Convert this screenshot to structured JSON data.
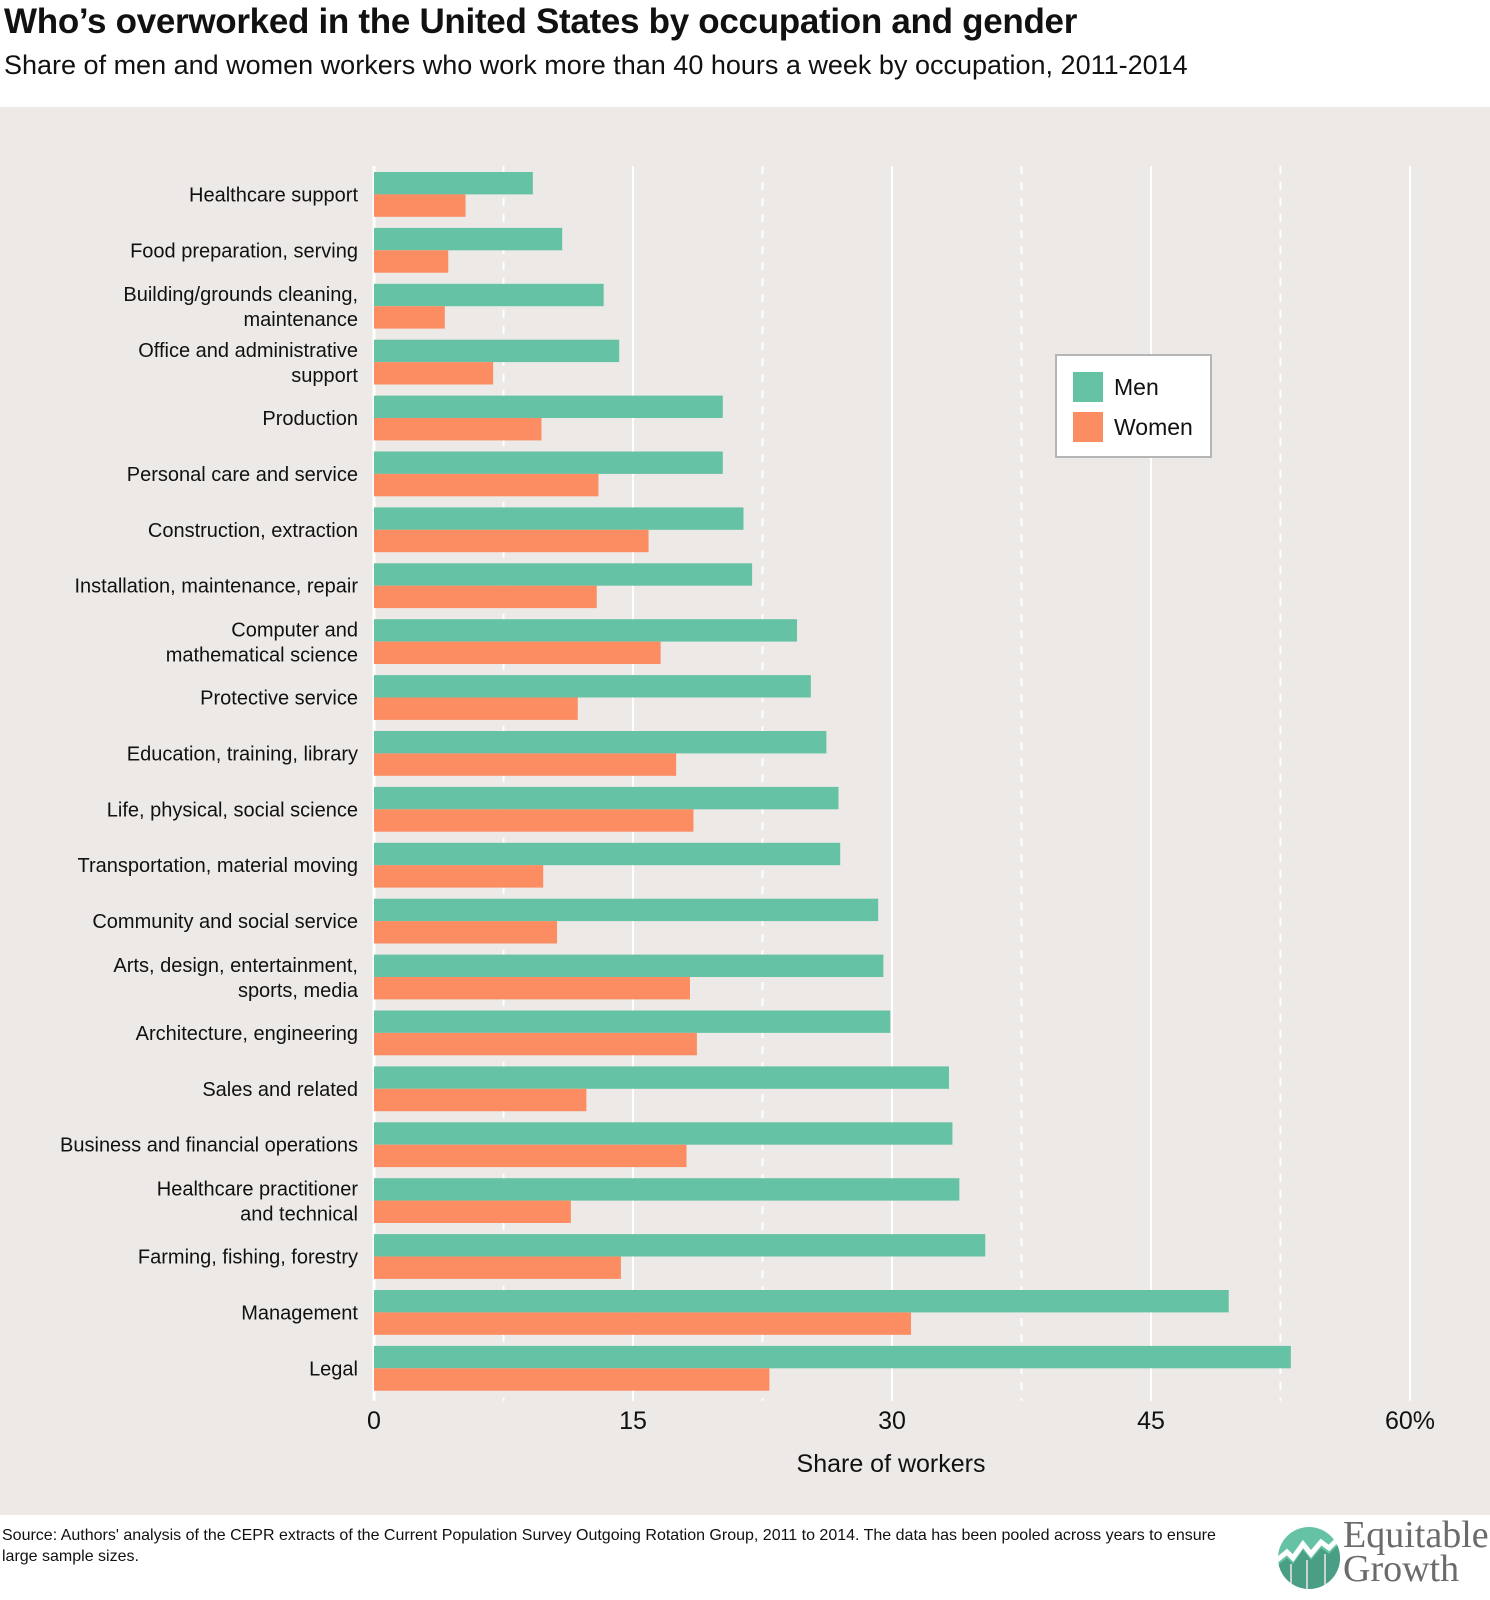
{
  "header": {
    "title": "Who’s overworked in the United States by occupation and gender",
    "subtitle": "Share of men and women workers who work more than 40 hours a week by occupation, 2011-2014"
  },
  "footer": {
    "source": "Source: Authors' analysis of the CEPR extracts of the Current Population Survey Outgoing Rotation Group, 2011 to 2014. The data has been pooled across years to ensure large sample sizes.",
    "logo_line1": "Equitable",
    "logo_line2": "Growth",
    "logo_icon": "growth-chart-circle-icon"
  },
  "colors": {
    "men": "#66C2A5",
    "women": "#FC8D62",
    "panel_bg": "#ECE9E7",
    "gridline": "#FFFFFF"
  },
  "chart_data": {
    "type": "bar",
    "orientation": "horizontal",
    "title": "Who’s overworked in the United States by occupation and gender",
    "subtitle": "Share of men and women workers who work more than 40 hours a week by occupation, 2011-2014",
    "xlabel": "Share of workers",
    "ylabel": "",
    "xlim": [
      0,
      60
    ],
    "xticks": [
      0,
      15,
      30,
      45,
      60
    ],
    "xtick_labels": [
      "0",
      "15",
      "30",
      "45",
      "60%"
    ],
    "minor_gridlines_dashed": [
      7.5,
      22.5,
      37.5,
      52.5
    ],
    "grid": true,
    "legend_position": "upper-right",
    "categories": [
      "Healthcare support",
      "Food preparation, serving",
      "Building/grounds cleaning,\nmaintenance",
      "Office and administrative\nsupport",
      "Production",
      "Personal care and service",
      "Construction, extraction",
      "Installation, maintenance, repair",
      "Computer and\nmathematical science",
      "Protective service",
      "Education, training, library",
      "Life, physical, social science",
      "Transportation, material moving",
      "Community and social service",
      "Arts, design, entertainment,\nsports, media",
      "Architecture, engineering",
      "Sales and related",
      "Business and financial operations",
      "Healthcare practitioner\nand technical",
      "Farming, fishing, forestry",
      "Management",
      "Legal"
    ],
    "series": [
      {
        "name": "Men",
        "color": "#66C2A5",
        "values": [
          9.2,
          10.9,
          13.3,
          14.2,
          20.2,
          20.2,
          21.4,
          21.9,
          24.5,
          25.3,
          26.2,
          26.9,
          27.0,
          29.2,
          29.5,
          29.9,
          33.3,
          33.5,
          33.9,
          35.4,
          49.5,
          53.1
        ]
      },
      {
        "name": "Women",
        "color": "#FC8D62",
        "values": [
          5.3,
          4.3,
          4.1,
          6.9,
          9.7,
          13.0,
          15.9,
          12.9,
          16.6,
          11.8,
          17.5,
          18.5,
          9.8,
          10.6,
          18.3,
          18.7,
          12.3,
          18.1,
          11.4,
          14.3,
          31.1,
          22.9
        ]
      }
    ]
  }
}
